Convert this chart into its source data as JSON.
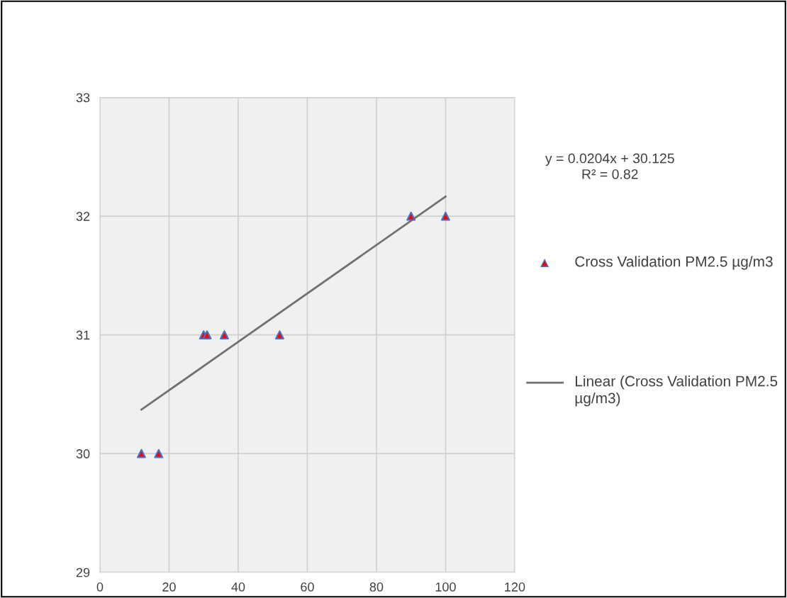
{
  "chart_data": {
    "type": "scatter",
    "xlim": [
      0,
      120
    ],
    "xticks": [
      0,
      20,
      40,
      60,
      80,
      100,
      120
    ],
    "ylim": [
      29,
      33
    ],
    "yticks": [
      29,
      30,
      31,
      32,
      33
    ],
    "grid": true,
    "legend": "right",
    "annotations": [
      "y = 0.0204x + 30.125\nR² = 0.82"
    ],
    "series": [
      {
        "name": "Cross Validation PM2.5 µg/m3",
        "marker": "triangle",
        "color": "#ff0000",
        "x": [
          12,
          17,
          30,
          31,
          36,
          52,
          90,
          100
        ],
        "values": [
          30,
          30,
          31,
          31,
          31,
          31,
          32,
          32
        ]
      },
      {
        "name": "Linear (Cross Validation PM2.5 µg/m3)",
        "type": "line",
        "color": "#707070",
        "line_style": "solid",
        "x": [
          12,
          100
        ],
        "values": [
          30.37,
          32.165
        ]
      }
    ]
  }
}
